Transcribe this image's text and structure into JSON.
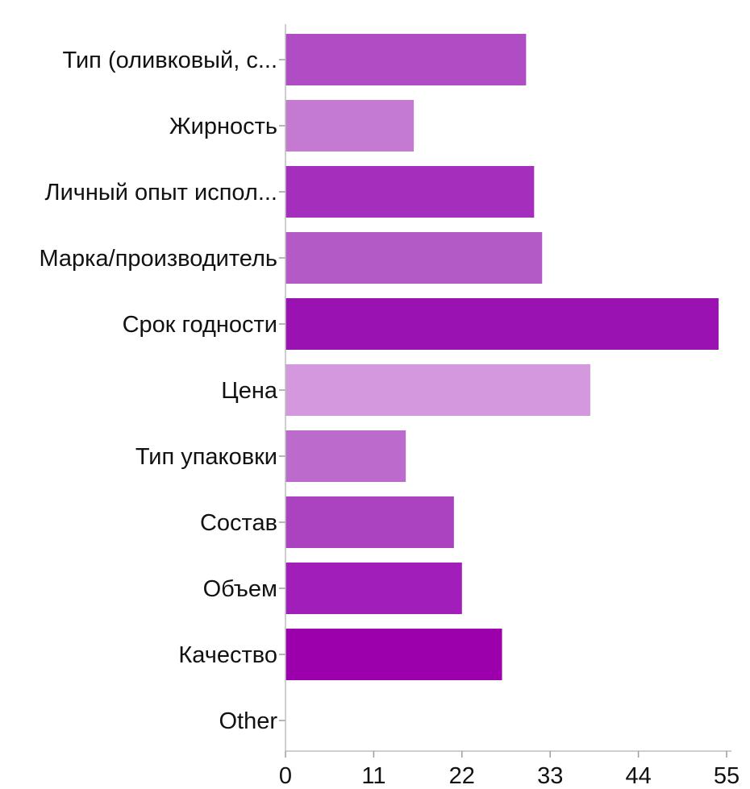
{
  "chart_data": {
    "type": "bar",
    "orientation": "horizontal",
    "categories": [
      "Тип (оливковый, с...",
      "Жирность",
      "Личный опыт испол...",
      "Марка/производитель",
      "Срок годности",
      "Цена",
      "Тип упаковки",
      "Состав",
      "Объем",
      "Качество",
      "Other"
    ],
    "values": [
      30,
      16,
      31,
      32,
      54,
      38,
      15,
      21,
      22,
      27,
      0
    ],
    "colors": [
      "#b04cc4",
      "#c57ad1",
      "#a52ebd",
      "#b45ac6",
      "#9a12b2",
      "#d398de",
      "#bd6acd",
      "#ab42c0",
      "#a21eba",
      "#9b00ac",
      "#9b00ac"
    ],
    "xlim": [
      0,
      55
    ],
    "xticks": [
      "0",
      "11",
      "22",
      "33",
      "44",
      "55"
    ],
    "title": "",
    "xlabel": "",
    "ylabel": "",
    "grid": false,
    "legend": false
  }
}
